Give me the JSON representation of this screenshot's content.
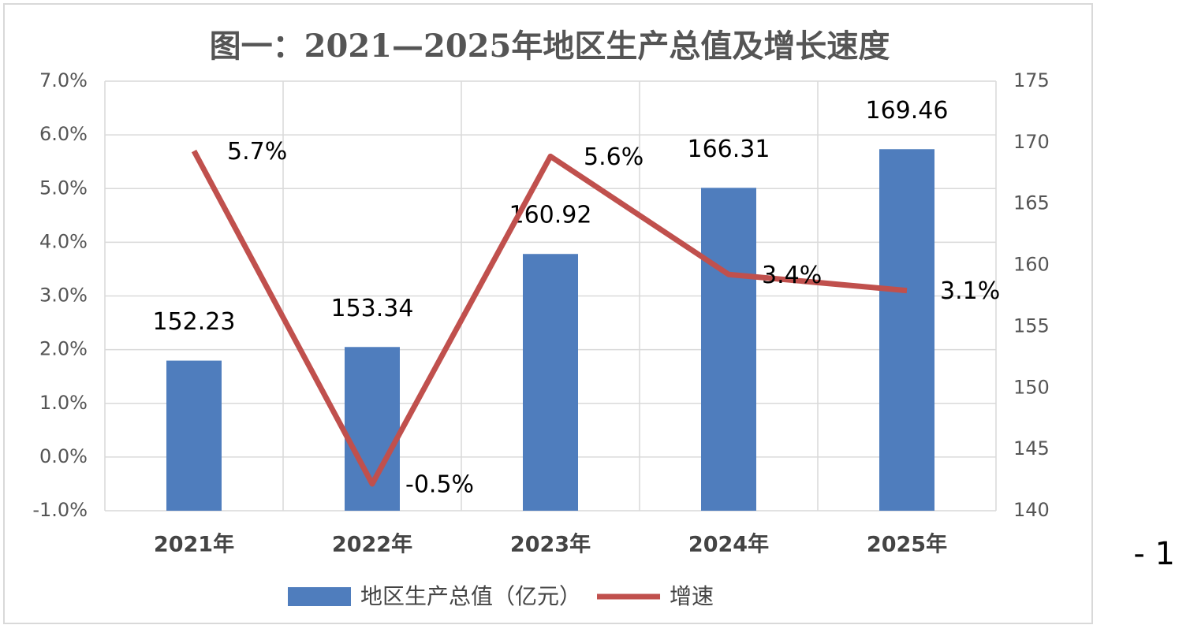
{
  "chart_data": {
    "type": "bar",
    "title": "图一：2021—2025年地区生产总值及增长速度",
    "categories": [
      "2021年",
      "2022年",
      "2023年",
      "2024年",
      "2025年"
    ],
    "series": [
      {
        "name": "地区生产总值（亿元）",
        "type": "bar",
        "axis": "y2",
        "color": "#4f7dbd",
        "values": [
          152.23,
          153.34,
          160.92,
          166.31,
          169.46
        ]
      },
      {
        "name": "增速",
        "type": "line",
        "axis": "y",
        "color": "#c0504d",
        "values": [
          5.7,
          -0.5,
          5.6,
          3.4,
          3.1
        ],
        "value_labels": [
          "5.7%",
          "-0.5%",
          "5.6%",
          "3.4%",
          "3.1%"
        ]
      }
    ],
    "ylim": [
      -1,
      7
    ],
    "yticks": [
      {
        "value": -1,
        "label": "-1.0%"
      },
      {
        "value": 0,
        "label": "0.0%"
      },
      {
        "value": 1,
        "label": "1.0%"
      },
      {
        "value": 2,
        "label": "2.0%"
      },
      {
        "value": 3,
        "label": "3.0%"
      },
      {
        "value": 4,
        "label": "4.0%"
      },
      {
        "value": 5,
        "label": "5.0%"
      },
      {
        "value": 6,
        "label": "6.0%"
      },
      {
        "value": 7,
        "label": "7.0%"
      }
    ],
    "y2lim": [
      140,
      175
    ],
    "y2ticks": [
      140,
      145,
      150,
      155,
      160,
      165,
      170,
      175
    ],
    "grid": true,
    "legend": "bottom"
  },
  "page_number": "- 1"
}
